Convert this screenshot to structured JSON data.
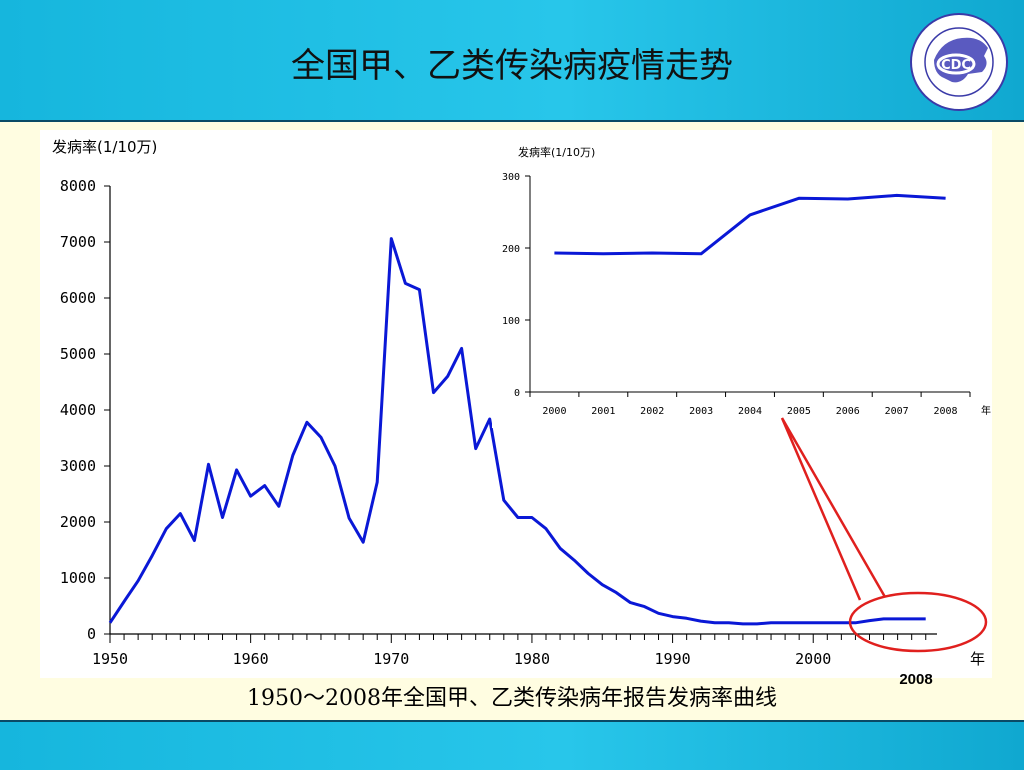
{
  "slide": {
    "title": "全国甲、乙类传染病疫情走势",
    "caption": "1950～2008年全国甲、乙类传染病年报告发病率曲线",
    "highlight_label": "2008",
    "logo_text": "CDC",
    "logo_ring_text": "CHINESE CENTER FOR DISEASE CONTROL AND PREVENTION"
  },
  "colors": {
    "line": "#0a18d6",
    "highlight": "#e0201e",
    "header": "#1ab8e0",
    "background": "#fffde1",
    "logo_blue": "#3a3aa8"
  },
  "chart_data": [
    {
      "type": "line",
      "ylabel": "发病率(1/10万)",
      "xlabel": "年",
      "ylim": [
        0,
        8000
      ],
      "yticks": [
        0,
        1000,
        2000,
        3000,
        4000,
        5000,
        6000,
        7000,
        8000
      ],
      "xticks": [
        1950,
        1960,
        1970,
        1980,
        1990,
        2000
      ],
      "xlim": [
        1950,
        2008
      ],
      "series": [
        {
          "x": [
            1950,
            1951,
            1952,
            1953,
            1954,
            1955,
            1956,
            1957,
            1958,
            1959,
            1960,
            1961,
            1962,
            1963,
            1964,
            1965,
            1966,
            1967,
            1968,
            1969,
            1970,
            1971,
            1972,
            1973,
            1974,
            1975,
            1976,
            1977,
            1978,
            1979,
            1980,
            1981,
            1982,
            1983,
            1984,
            1985,
            1986,
            1987,
            1988,
            1989,
            1990,
            1991,
            1992,
            1993,
            1994,
            1995,
            1996,
            1997,
            1998,
            1999,
            2000,
            2001,
            2002,
            2003,
            2004,
            2005,
            2006,
            2007,
            2008
          ],
          "values": [
            200,
            580,
            950,
            1400,
            1880,
            2150,
            1670,
            3030,
            2080,
            2930,
            2460,
            2650,
            2280,
            3190,
            3780,
            3510,
            3000,
            2070,
            1640,
            2710,
            7060,
            6260,
            6150,
            4310,
            4600,
            5100,
            3310,
            3840,
            2390,
            2080,
            2080,
            1880,
            1530,
            1320,
            1080,
            880,
            740,
            560,
            490,
            370,
            310,
            280,
            230,
            200,
            200,
            180,
            180,
            200,
            200,
            200,
            200,
            200,
            200,
            200,
            240,
            270,
            270,
            270,
            270
          ]
        }
      ]
    },
    {
      "type": "line",
      "ylabel": "发病率(1/10万)",
      "xlabel": "年",
      "ylim": [
        0,
        300
      ],
      "yticks": [
        0,
        100,
        200,
        300
      ],
      "categories": [
        "2000",
        "2001",
        "2002",
        "2003",
        "2004",
        "2005",
        "2006",
        "2007",
        "2008"
      ],
      "series": [
        {
          "values": [
            193,
            192,
            193,
            192,
            246,
            269,
            268,
            273,
            269
          ]
        }
      ]
    }
  ]
}
